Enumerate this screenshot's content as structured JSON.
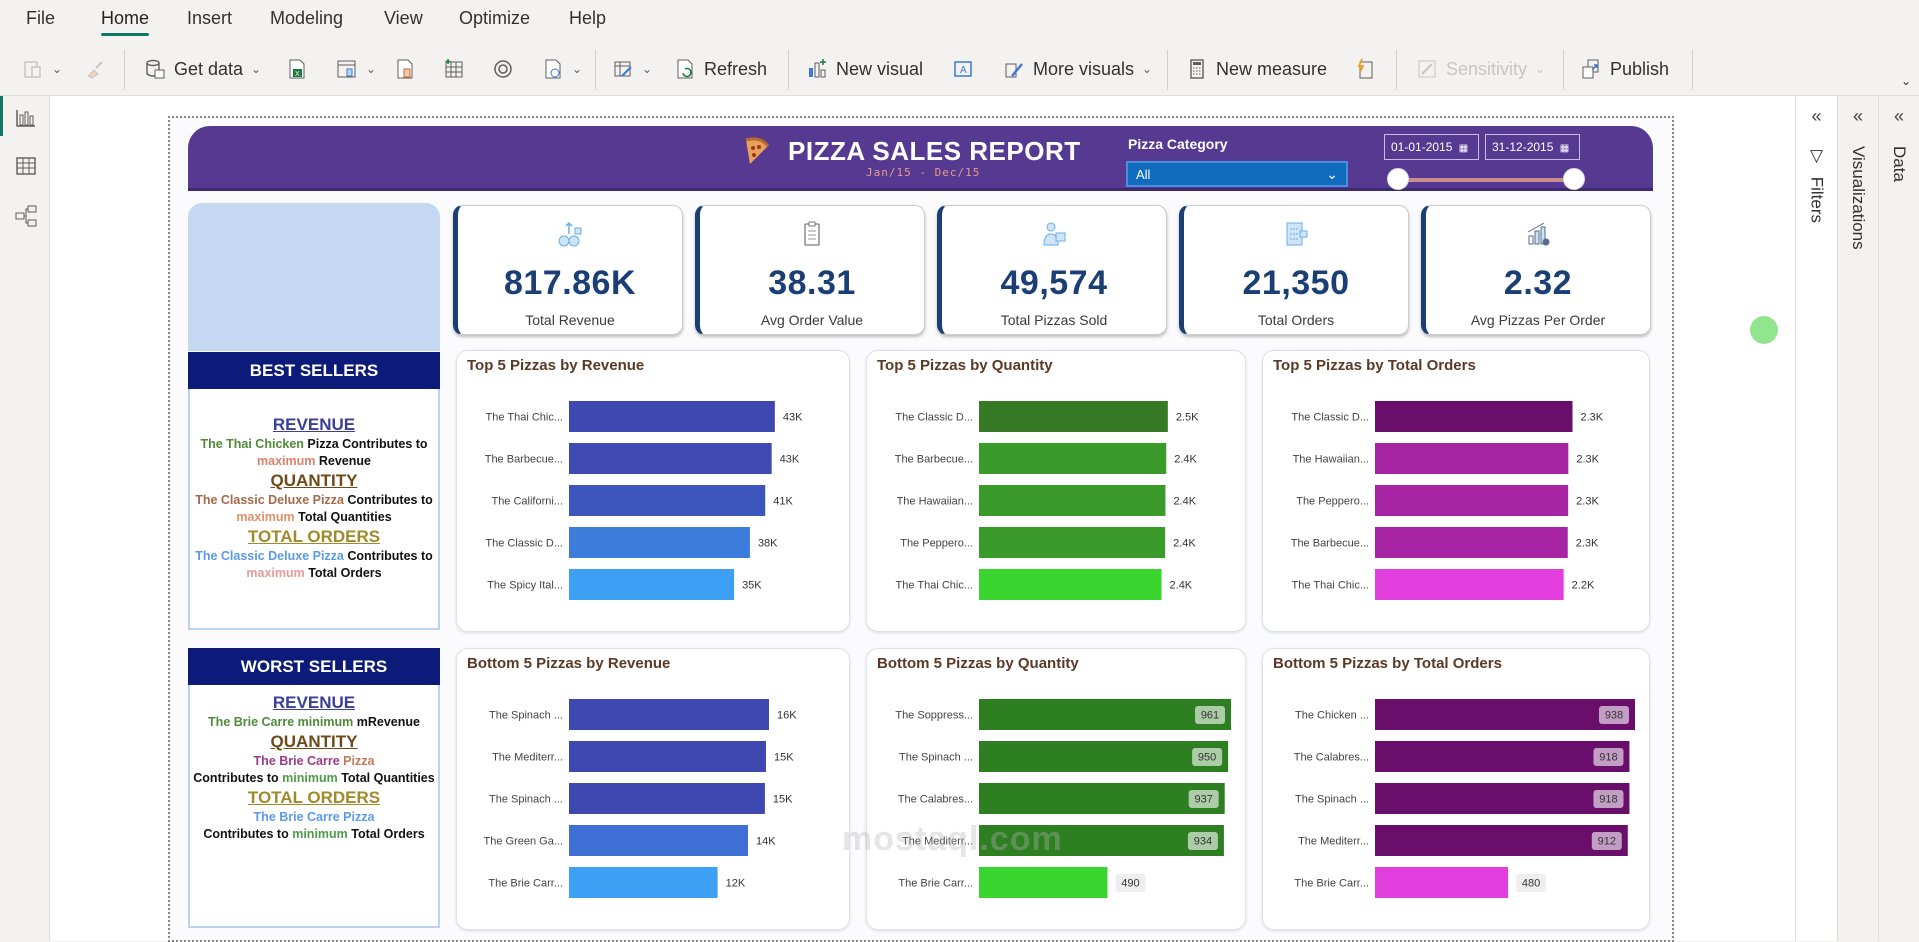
{
  "menu": {
    "items": [
      "File",
      "Home",
      "Insert",
      "Modeling",
      "View",
      "Optimize",
      "Help"
    ],
    "active": "Home"
  },
  "toolbar": {
    "get_data": "Get data",
    "refresh": "Refresh",
    "new_visual": "New visual",
    "more_visuals": "More visuals",
    "new_measure": "New measure",
    "sensitivity": "Sensitivity",
    "publish": "Publish"
  },
  "report": {
    "title": "PIZZA SALES REPORT",
    "subtitle": "Jan/15 - Dec/15",
    "category_filter": {
      "label": "Pizza Category",
      "selected": "All"
    },
    "date_range": {
      "start": "01-01-2015",
      "end": "31-12-2015"
    },
    "colors": {
      "header": "#563a92",
      "kpi_text": "#1b3f74",
      "seller_header": "#0c1a7a"
    }
  },
  "kpis": [
    {
      "value": "817.86K",
      "label": "Total Revenue",
      "icon": "money-growth-icon"
    },
    {
      "value": "38.31",
      "label": "Avg Order Value",
      "icon": "clipboard-icon"
    },
    {
      "value": "49,574",
      "label": "Total Pizzas Sold",
      "icon": "delivery-person-icon"
    },
    {
      "value": "21,350",
      "label": "Total Orders",
      "icon": "order-list-icon"
    },
    {
      "value": "2.32",
      "label": "Avg Pizzas Per Order",
      "icon": "bar-growth-icon"
    }
  ],
  "best_sellers": {
    "heading": "BEST SELLERS",
    "revenue": {
      "title": "REVENUE",
      "pizza": "The Thai Chicken",
      "text1": " Pizza Contributes to ",
      "highlight": "maximum",
      "text2": " Revenue"
    },
    "quantity": {
      "title": "QUANTITY",
      "pizza": "The Classic Deluxe Pizza",
      "text1": " Contributes to ",
      "highlight": "maximum",
      "text2": " Total Quantities"
    },
    "orders": {
      "title": "TOTAL ORDERS",
      "pizza": "The Classic Deluxe Pizza",
      "text1": " Contributes to ",
      "highlight": "maximum",
      "text2": " Total Orders"
    }
  },
  "worst_sellers": {
    "heading": "WORST SELLERS",
    "revenue": {
      "title": "REVENUE",
      "pizza": "The Brie Carre",
      "highlight": " minimum",
      "text2": " mRevenue"
    },
    "quantity": {
      "title": "QUANTITY",
      "pizza": "The Brie Carre",
      "pizza_suffix": " Pizza",
      "text1": "Contributes to ",
      "highlight": "minimum",
      "text2": " Total Quantities"
    },
    "orders": {
      "title": "TOTAL ORDERS",
      "pizza": "The Brie Carre Pizza",
      "text1": "Contributes to ",
      "highlight": "minimum",
      "text2": " Total Orders"
    }
  },
  "chart_data": [
    {
      "type": "bar",
      "orientation": "horizontal",
      "title": "Top 5 Pizzas by Revenue",
      "categories": [
        "The Thai Chic...",
        "The Barbecue...",
        "The Californi...",
        "The Classic D...",
        "The Spicy Ital..."
      ],
      "values": [
        43434,
        42768,
        41410,
        38181,
        34832
      ],
      "labels": [
        "43K",
        "43K",
        "41K",
        "38K",
        "35K"
      ],
      "colors": [
        "#3f48b0",
        "#3f4ab4",
        "#3c56be",
        "#3c7ddc",
        "#3ea0f4"
      ],
      "xlim": [
        0,
        46000
      ],
      "label_style": "outside"
    },
    {
      "type": "bar",
      "orientation": "horizontal",
      "title": "Top 5 Pizzas by Quantity",
      "categories": [
        "The Classic D...",
        "The Barbecue...",
        "The Hawaiian...",
        "The Peppero...",
        "The Thai Chic..."
      ],
      "values": [
        2453,
        2432,
        2422,
        2418,
        2371
      ],
      "labels": [
        "2.5K",
        "2.4K",
        "2.4K",
        "2.4K",
        "2.4K"
      ],
      "colors": [
        "#367a26",
        "#3a9a2a",
        "#3a9a2a",
        "#3a9a2a",
        "#3ad42f"
      ],
      "xlim": [
        0,
        2650
      ],
      "label_style": "outside"
    },
    {
      "type": "bar",
      "orientation": "horizontal",
      "title": "Top 5 Pizzas by Total Orders",
      "categories": [
        "The Classic D...",
        "The Hawaiian...",
        "The Peppero...",
        "The Barbecue...",
        "The Thai Chic..."
      ],
      "values": [
        2329,
        2280,
        2278,
        2273,
        2225
      ],
      "labels": [
        "2.3K",
        "2.3K",
        "2.3K",
        "2.3K",
        "2.2K"
      ],
      "colors": [
        "#6a0e6c",
        "#a624a4",
        "#a624a4",
        "#a624a4",
        "#e23ede"
      ],
      "xlim": [
        0,
        2500
      ],
      "label_style": "outside"
    },
    {
      "type": "bar",
      "orientation": "horizontal",
      "title": "Bottom 5 Pizzas by Revenue",
      "categories": [
        "The Spinach ...",
        "The Mediterr...",
        "The Spinach ...",
        "The Green Ga...",
        "The Brie Carr..."
      ],
      "values": [
        15596,
        15360,
        15278,
        13956,
        11588
      ],
      "labels": [
        "16K",
        "15K",
        "15K",
        "14K",
        "12K"
      ],
      "colors": [
        "#3f48b0",
        "#3f48b0",
        "#3f48b0",
        "#3f6fd4",
        "#3ea0f4"
      ],
      "xlim": [
        0,
        17000
      ],
      "label_style": "outside"
    },
    {
      "type": "bar",
      "orientation": "horizontal",
      "title": "Bottom 5 Pizzas by Quantity",
      "categories": [
        "The Soppress...",
        "The Spinach ...",
        "The Calabres...",
        "The Mediterr...",
        "The Brie Carr..."
      ],
      "values": [
        961,
        950,
        937,
        934,
        490
      ],
      "labels": [
        "961",
        "950",
        "937",
        "934",
        "490"
      ],
      "colors": [
        "#2e7f22",
        "#2e7f22",
        "#2e7f22",
        "#2e7f22",
        "#3ad42f"
      ],
      "xlim": [
        0,
        961
      ],
      "label_style": "inside"
    },
    {
      "type": "bar",
      "orientation": "horizontal",
      "title": "Bottom 5 Pizzas by Total Orders",
      "categories": [
        "The Chicken ...",
        "The Calabres...",
        "The Spinach ...",
        "The Mediterr...",
        "The Brie Carr..."
      ],
      "values": [
        938,
        918,
        918,
        912,
        480
      ],
      "labels": [
        "938",
        "918",
        "918",
        "912",
        "480"
      ],
      "colors": [
        "#6a0e6c",
        "#6a0e6c",
        "#6a0e6c",
        "#6a0e6c",
        "#e23ede"
      ],
      "xlim": [
        0,
        938
      ],
      "label_style": "inside"
    }
  ],
  "panes": {
    "filters": "Filters",
    "visualizations": "Visualizations",
    "data": "Data"
  },
  "watermark": "mostaql.com"
}
